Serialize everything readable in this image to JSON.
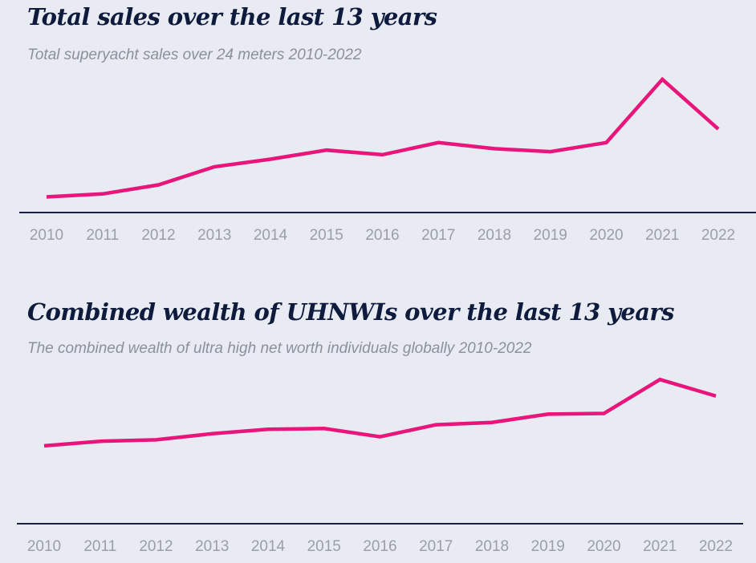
{
  "colors": {
    "background": "#e8ebf2",
    "line": "#e8157b",
    "axis": "#1a2040",
    "title": "#0f1b3d",
    "subtitle": "#8c909c",
    "tick": "#9a9ea9"
  },
  "chart_data": [
    {
      "type": "line",
      "title": "Total sales over the last 13 years",
      "subtitle": "Total superyacht sales over 24 meters 2010-2022",
      "xlabel": "",
      "ylabel": "",
      "categories": [
        "2010",
        "2011",
        "2012",
        "2013",
        "2014",
        "2015",
        "2016",
        "2017",
        "2018",
        "2019",
        "2020",
        "2021",
        "2022"
      ],
      "series": [
        {
          "values": [
            21,
            23,
            29,
            41,
            46,
            52,
            49,
            57,
            53,
            51,
            57,
            99,
            66
          ]
        }
      ],
      "ylim": [
        0,
        110
      ],
      "grid": false,
      "legend": "none"
    },
    {
      "type": "line",
      "title": "Combined wealth of UHNWIs over the last 13 years",
      "subtitle": "The combined wealth of ultra high net worth individuals globally 2010-2022",
      "xlabel": "",
      "ylabel": "",
      "categories": [
        "2010",
        "2011",
        "2012",
        "2013",
        "2014",
        "2015",
        "2016",
        "2017",
        "2018",
        "2019",
        "2020",
        "2021",
        "2022"
      ],
      "series": [
        {
          "values": [
            49,
            52,
            53,
            57,
            60,
            60.5,
            55,
            63,
            64.5,
            70,
            70.5,
            93,
            82
          ]
        }
      ],
      "ylim": [
        0,
        110
      ],
      "grid": false,
      "legend": "none"
    }
  ]
}
